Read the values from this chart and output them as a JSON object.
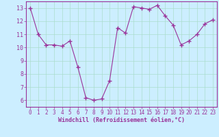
{
  "x": [
    0,
    1,
    2,
    3,
    4,
    5,
    6,
    7,
    8,
    9,
    10,
    11,
    12,
    13,
    14,
    15,
    16,
    17,
    18,
    19,
    20,
    21,
    22,
    23
  ],
  "y": [
    13.0,
    11.0,
    10.2,
    10.2,
    10.1,
    10.5,
    8.5,
    6.2,
    6.0,
    6.1,
    7.5,
    11.5,
    11.1,
    13.1,
    13.0,
    12.9,
    13.2,
    12.4,
    11.7,
    10.2,
    10.5,
    11.0,
    11.8,
    12.1
  ],
  "line_color": "#993399",
  "marker": "+",
  "marker_size": 4,
  "bg_color": "#cceeff",
  "grid_color": "#aaddcc",
  "xlabel": "Windchill (Refroidissement éolien,°C)",
  "xlabel_color": "#993399",
  "tick_color": "#993399",
  "spine_color": "#993399",
  "ylim": [
    5.5,
    13.5
  ],
  "xlim": [
    -0.5,
    23.5
  ],
  "yticks": [
    6,
    7,
    8,
    9,
    10,
    11,
    12,
    13
  ],
  "xticks": [
    0,
    1,
    2,
    3,
    4,
    5,
    6,
    7,
    8,
    9,
    10,
    11,
    12,
    13,
    14,
    15,
    16,
    17,
    18,
    19,
    20,
    21,
    22,
    23
  ]
}
